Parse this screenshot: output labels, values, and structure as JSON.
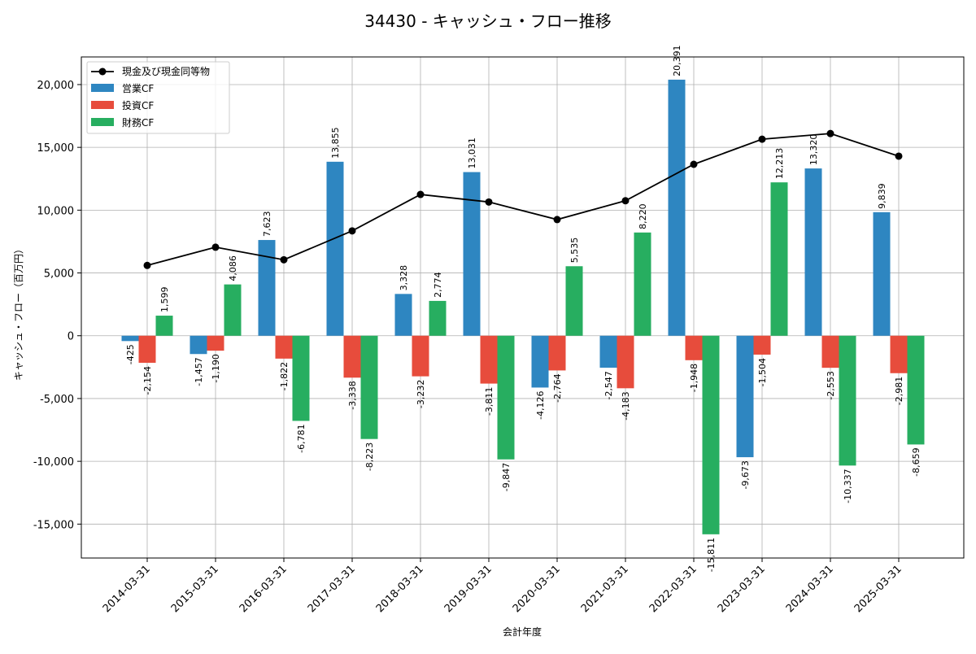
{
  "chart_data": {
    "type": "bar",
    "title": "34430 - キャッシュ・フロー推移",
    "xlabel": "会計年度",
    "ylabel": "キャッシュ・フロー（百万円）",
    "ylim": [
      -17700,
      22200
    ],
    "yticks": [
      -15000,
      -10000,
      -5000,
      0,
      5000,
      10000,
      15000,
      20000
    ],
    "ytick_labels": [
      "-15,000",
      "-10,000",
      "-5,000",
      "0",
      "5,000",
      "10,000",
      "15,000",
      "20,000"
    ],
    "grid": true,
    "legend_position": "top-left",
    "categories": [
      "2014-03-31",
      "2015-03-31",
      "2016-03-31",
      "2017-03-31",
      "2018-03-31",
      "2019-03-31",
      "2020-03-31",
      "2021-03-31",
      "2022-03-31",
      "2023-03-31",
      "2024-03-31",
      "2025-03-31"
    ],
    "series": [
      {
        "name": "営業CF",
        "kind": "bar",
        "color": "#2e86c1",
        "values": [
          -425,
          -1457,
          7623,
          13855,
          3328,
          13031,
          -4126,
          -2547,
          20391,
          -9673,
          13320,
          9839
        ],
        "labels": [
          "-425",
          "-1,457",
          "7,623",
          "13,855",
          "3,328",
          "13,031",
          "-4,126",
          "-2,547",
          "20,391",
          "-9,673",
          "13,320",
          "9,839"
        ]
      },
      {
        "name": "投資CF",
        "kind": "bar",
        "color": "#e74c3c",
        "values": [
          -2154,
          -1190,
          -1822,
          -3338,
          -3232,
          -3811,
          -2764,
          -4183,
          -1948,
          -1504,
          -2553,
          -2981
        ],
        "labels": [
          "-2,154",
          "-1,190",
          "-1,822",
          "-3,338",
          "-3,232",
          "-3,811",
          "-2,764",
          "-4,183",
          "-1,948",
          "-1,504",
          "-2,553",
          "-2,981"
        ]
      },
      {
        "name": "財務CF",
        "kind": "bar",
        "color": "#27ae60",
        "values": [
          1599,
          4086,
          -6781,
          -8223,
          2774,
          -9847,
          5535,
          8220,
          -15811,
          12213,
          -10337,
          -8659
        ],
        "labels": [
          "1,599",
          "4,086",
          "-6,781",
          "-8,223",
          "2,774",
          "-9,847",
          "5,535",
          "8,220",
          "-15,811",
          "12,213",
          "-10,337",
          "-8,659"
        ]
      },
      {
        "name": "現金及び現金同等物",
        "kind": "line",
        "color": "#000000",
        "values": [
          5600,
          7050,
          6050,
          8350,
          11250,
          10650,
          9250,
          10750,
          13650,
          15650,
          16100,
          14300
        ]
      }
    ]
  }
}
